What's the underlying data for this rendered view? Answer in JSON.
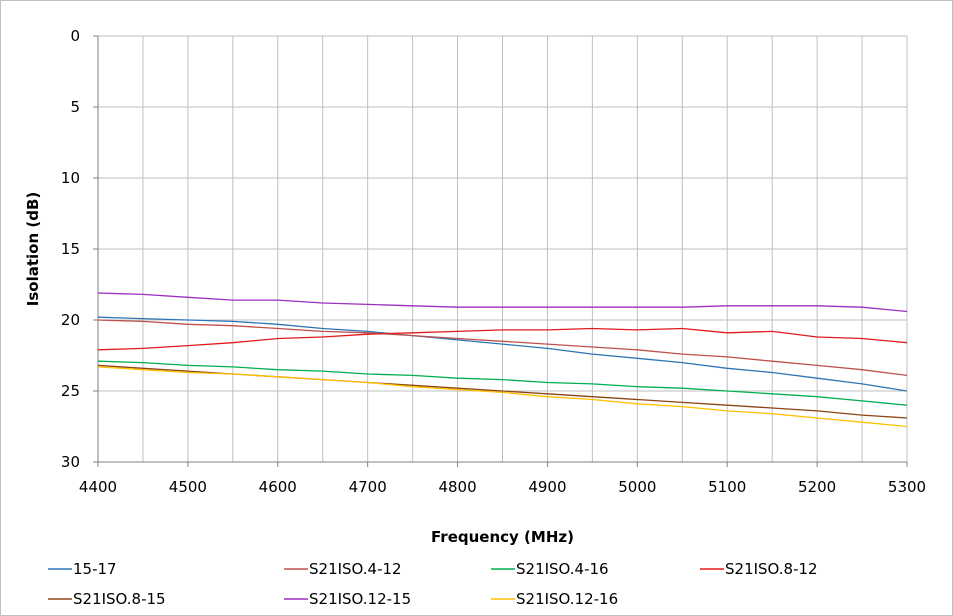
{
  "chart_data": {
    "type": "line",
    "xlabel": "Frequency (MHz)",
    "ylabel": "Isolation (dB)",
    "xlim": [
      4400,
      5300
    ],
    "ylim": [
      0,
      30
    ],
    "y_inverted": true,
    "x_ticks": [
      4400,
      4500,
      4600,
      4700,
      4800,
      4900,
      5000,
      5100,
      5200,
      5300
    ],
    "y_ticks": [
      0,
      5,
      10,
      15,
      20,
      25,
      30
    ],
    "x_minor_grid_step": 50,
    "grid": true,
    "legend_position": "bottom",
    "x": [
      4400,
      4450,
      4500,
      4550,
      4600,
      4650,
      4700,
      4750,
      4800,
      4850,
      4900,
      4950,
      5000,
      5050,
      5100,
      5150,
      5200,
      5250,
      5300
    ],
    "series": [
      {
        "name": "15-17",
        "color": "#2e75b6",
        "values": [
          19.8,
          19.9,
          20.0,
          20.1,
          20.3,
          20.6,
          20.8,
          21.1,
          21.4,
          21.7,
          22.0,
          22.4,
          22.7,
          23.0,
          23.4,
          23.7,
          24.1,
          24.5,
          25.0
        ]
      },
      {
        "name": "S21ISO.4-12",
        "color": "#c0504d",
        "values": [
          20.0,
          20.1,
          20.3,
          20.4,
          20.6,
          20.8,
          20.9,
          21.1,
          21.3,
          21.5,
          21.7,
          21.9,
          22.1,
          22.4,
          22.6,
          22.9,
          23.2,
          23.5,
          23.9
        ]
      },
      {
        "name": "S21ISO.4-16",
        "color": "#00b050",
        "values": [
          22.9,
          23.0,
          23.2,
          23.3,
          23.5,
          23.6,
          23.8,
          23.9,
          24.1,
          24.2,
          24.4,
          24.5,
          24.7,
          24.8,
          25.0,
          25.2,
          25.4,
          25.7,
          26.0
        ]
      },
      {
        "name": "S21ISO.8-12",
        "color": "#e31a1c",
        "values": [
          22.1,
          22.0,
          21.8,
          21.6,
          21.3,
          21.2,
          21.0,
          20.9,
          20.8,
          20.7,
          20.7,
          20.6,
          20.7,
          20.6,
          20.9,
          20.8,
          21.2,
          21.3,
          21.6
        ]
      },
      {
        "name": "S21ISO.8-15",
        "color": "#8b4513",
        "values": [
          23.2,
          23.4,
          23.6,
          23.8,
          24.0,
          24.2,
          24.4,
          24.6,
          24.8,
          25.0,
          25.2,
          25.4,
          25.6,
          25.8,
          26.0,
          26.2,
          26.4,
          26.7,
          26.9
        ]
      },
      {
        "name": "S21ISO.12-15",
        "color": "#9c2ec0",
        "values": [
          18.1,
          18.2,
          18.4,
          18.6,
          18.6,
          18.8,
          18.9,
          19.0,
          19.1,
          19.1,
          19.1,
          19.1,
          19.1,
          19.1,
          19.0,
          19.0,
          19.0,
          19.1,
          19.4
        ]
      },
      {
        "name": "S21ISO.12-16",
        "color": "#ffc000",
        "values": [
          23.3,
          23.5,
          23.7,
          23.8,
          24.0,
          24.2,
          24.4,
          24.7,
          24.9,
          25.1,
          25.4,
          25.6,
          25.9,
          26.1,
          26.4,
          26.6,
          26.9,
          27.2,
          27.5
        ]
      }
    ]
  }
}
